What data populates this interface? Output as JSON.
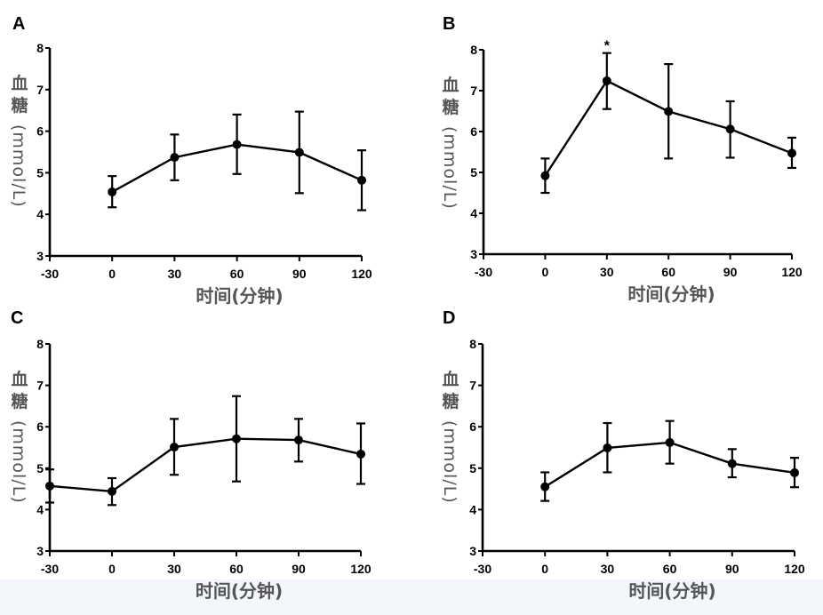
{
  "chart_data": [
    {
      "type": "line",
      "panel": "A",
      "title": "",
      "xlabel": "时间(分钟)",
      "ylabel_cn": "血糖",
      "ylabel_unit": "(mmol/L)",
      "xlim": [
        -30,
        120
      ],
      "ylim": [
        3,
        8
      ],
      "xticks": [
        -30,
        0,
        30,
        60,
        90,
        120
      ],
      "yticks": [
        3,
        4,
        5,
        6,
        7,
        8
      ],
      "grid": false,
      "x": [
        0,
        30,
        60,
        90,
        120
      ],
      "y": [
        4.54,
        5.37,
        5.68,
        5.49,
        4.82
      ],
      "err_upper": [
        4.92,
        5.92,
        6.4,
        6.47,
        5.54
      ],
      "err_lower": [
        4.17,
        4.82,
        4.97,
        4.51,
        4.1
      ],
      "annotations": []
    },
    {
      "type": "line",
      "panel": "B",
      "title": "",
      "xlabel": "时间(分钟)",
      "ylabel_cn": "血糖",
      "ylabel_unit": "(mmol/L)",
      "xlim": [
        -30,
        120
      ],
      "ylim": [
        3,
        8
      ],
      "xticks": [
        -30,
        0,
        30,
        60,
        90,
        120
      ],
      "yticks": [
        3,
        4,
        5,
        6,
        7,
        8
      ],
      "grid": false,
      "x": [
        0,
        30,
        60,
        90,
        120
      ],
      "y": [
        4.92,
        7.24,
        6.49,
        6.06,
        5.47
      ],
      "err_upper": [
        5.34,
        7.92,
        7.65,
        6.74,
        5.85
      ],
      "err_lower": [
        4.5,
        6.55,
        5.34,
        5.36,
        5.11
      ],
      "annotations": [
        {
          "x": 30,
          "text": "*"
        }
      ]
    },
    {
      "type": "line",
      "panel": "C",
      "title": "",
      "xlabel": "时间(分钟)",
      "ylabel_cn": "血糖",
      "ylabel_unit": "(mmol/L)",
      "xlim": [
        -30,
        120
      ],
      "ylim": [
        3,
        8
      ],
      "xticks": [
        -30,
        0,
        30,
        60,
        90,
        120
      ],
      "yticks": [
        3,
        4,
        5,
        6,
        7,
        8
      ],
      "grid": false,
      "x": [
        -30,
        0,
        30,
        60,
        90,
        120
      ],
      "y": [
        4.57,
        4.44,
        5.51,
        5.71,
        5.68,
        5.34
      ],
      "err_upper": [
        4.97,
        4.76,
        6.19,
        6.74,
        6.19,
        6.08
      ],
      "err_lower": [
        4.17,
        4.11,
        4.84,
        4.68,
        5.16,
        4.62
      ],
      "annotations": []
    },
    {
      "type": "line",
      "panel": "D",
      "title": "",
      "xlabel": "时间(分钟)",
      "ylabel_cn": "血糖",
      "ylabel_unit": "(mmol/L)",
      "xlim": [
        -30,
        120
      ],
      "ylim": [
        3,
        8
      ],
      "xticks": [
        -30,
        0,
        30,
        60,
        90,
        120
      ],
      "yticks": [
        3,
        4,
        5,
        6,
        7,
        8
      ],
      "grid": false,
      "x": [
        0,
        30,
        60,
        90,
        120
      ],
      "y": [
        4.55,
        5.49,
        5.62,
        5.11,
        4.89
      ],
      "err_upper": [
        4.9,
        6.09,
        6.14,
        5.46,
        5.25
      ],
      "err_lower": [
        4.21,
        4.9,
        5.11,
        4.78,
        4.54
      ],
      "annotations": []
    }
  ],
  "colors": {
    "line": "#000000",
    "axis_title": "#555555",
    "bottom_band": "#f3f7fb"
  }
}
